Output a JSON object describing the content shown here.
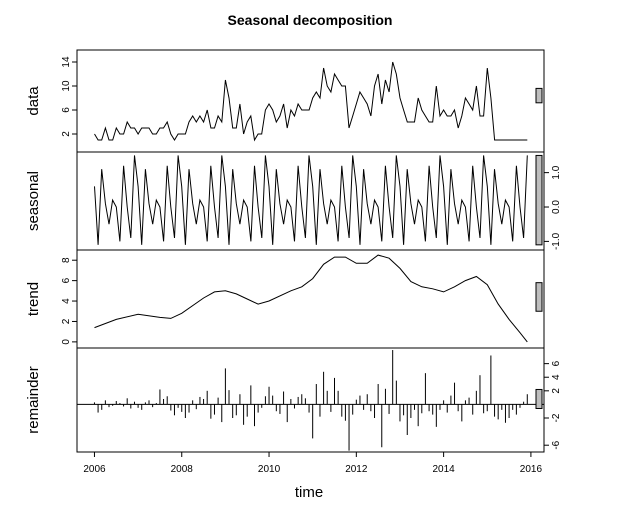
{
  "title": "Seasonal decomposition",
  "xlabel": "time",
  "chart_data": [
    {
      "type": "line",
      "name": "data",
      "ylabel": "data",
      "ylim": [
        -1,
        16
      ],
      "yticks": [
        2,
        6,
        10,
        14
      ],
      "ytick_side": "left",
      "x": [
        2006.0,
        2006.083,
        2006.167,
        2006.25,
        2006.333,
        2006.417,
        2006.5,
        2006.583,
        2006.667,
        2006.75,
        2006.833,
        2006.917,
        2007.0,
        2007.083,
        2007.167,
        2007.25,
        2007.333,
        2007.417,
        2007.5,
        2007.583,
        2007.667,
        2007.75,
        2007.833,
        2007.917,
        2008.0,
        2008.083,
        2008.167,
        2008.25,
        2008.333,
        2008.417,
        2008.5,
        2008.583,
        2008.667,
        2008.75,
        2008.833,
        2008.917,
        2009.0,
        2009.083,
        2009.167,
        2009.25,
        2009.333,
        2009.417,
        2009.5,
        2009.583,
        2009.667,
        2009.75,
        2009.833,
        2009.917,
        2010.0,
        2010.083,
        2010.167,
        2010.25,
        2010.333,
        2010.417,
        2010.5,
        2010.583,
        2010.667,
        2010.75,
        2010.833,
        2010.917,
        2011.0,
        2011.083,
        2011.167,
        2011.25,
        2011.333,
        2011.417,
        2011.5,
        2011.583,
        2011.667,
        2011.75,
        2011.833,
        2011.917,
        2012.0,
        2012.083,
        2012.167,
        2012.25,
        2012.333,
        2012.417,
        2012.5,
        2012.583,
        2012.667,
        2012.75,
        2012.833,
        2012.917,
        2013.0,
        2013.083,
        2013.167,
        2013.25,
        2013.333,
        2013.417,
        2013.5,
        2013.583,
        2013.667,
        2013.75,
        2013.833,
        2013.917,
        2014.0,
        2014.083,
        2014.167,
        2014.25,
        2014.333,
        2014.417,
        2014.5,
        2014.583,
        2014.667,
        2014.75,
        2014.833,
        2014.917,
        2015.0,
        2015.083,
        2015.167,
        2015.25,
        2015.333,
        2015.417,
        2015.5,
        2015.583,
        2015.667,
        2015.75,
        2015.833,
        2015.917
      ],
      "values": [
        2,
        1,
        1,
        3,
        1,
        1,
        3,
        2,
        2,
        4,
        3,
        3,
        2,
        3,
        3,
        3,
        2,
        2,
        3,
        3,
        4,
        2,
        1,
        2,
        2,
        2,
        4,
        5,
        4,
        5,
        4,
        6,
        3,
        3,
        5,
        4,
        11,
        8,
        3,
        3,
        7,
        2,
        4,
        5,
        1,
        2,
        2,
        6,
        7,
        6,
        4,
        5,
        7,
        3,
        6,
        5,
        7,
        6,
        6,
        6,
        8,
        9,
        8,
        13,
        10,
        9,
        12,
        11,
        10,
        10,
        3,
        5,
        7,
        9,
        8,
        7,
        5,
        10,
        12,
        7,
        11,
        9,
        14,
        12,
        8,
        6,
        4,
        4,
        4,
        8,
        6,
        5,
        4,
        4,
        10,
        5,
        6,
        5,
        5,
        6,
        3,
        5,
        8,
        7,
        6,
        10,
        5,
        5,
        13,
        8,
        1,
        1,
        1,
        1,
        1,
        1,
        1,
        1,
        1,
        1
      ],
      "bar_range": [
        7.2,
        9.6
      ]
    },
    {
      "type": "line",
      "name": "seasonal",
      "ylabel": "seasonal",
      "ylim": [
        -1.25,
        1.6
      ],
      "yticks": [
        -1.0,
        0.0,
        1.0
      ],
      "ytick_labels": [
        "-1.0",
        "0.0",
        "1.0"
      ],
      "ytick_side": "right",
      "x_start": 2006.0,
      "x_step": 0.0833333,
      "pattern": [
        0.6,
        -1.1,
        1.1,
        0.1,
        -0.5,
        0.2,
        0.0,
        -1.0,
        1.2,
        0.0,
        -0.9,
        1.5
      ],
      "bar_range": [
        -1.1,
        1.5
      ]
    },
    {
      "type": "line",
      "name": "trend",
      "ylabel": "trend",
      "ylim": [
        -0.6,
        9.0
      ],
      "yticks": [
        0,
        2,
        4,
        6,
        8
      ],
      "ytick_side": "left",
      "x": [
        2006.0,
        2006.5,
        2007.0,
        2007.5,
        2007.75,
        2008.0,
        2008.5,
        2008.75,
        2009.0,
        2009.25,
        2009.5,
        2009.75,
        2010.0,
        2010.5,
        2010.75,
        2011.0,
        2011.25,
        2011.5,
        2011.75,
        2012.0,
        2012.25,
        2012.5,
        2012.75,
        2013.0,
        2013.25,
        2013.5,
        2013.75,
        2014.0,
        2014.25,
        2014.5,
        2014.75,
        2015.0,
        2015.25,
        2015.5,
        2015.75,
        2015.917
      ],
      "values": [
        1.4,
        2.2,
        2.7,
        2.4,
        2.3,
        2.8,
        4.3,
        4.9,
        5.0,
        4.7,
        4.2,
        3.7,
        4.0,
        5.0,
        5.4,
        6.2,
        7.6,
        8.3,
        8.3,
        7.7,
        7.7,
        8.5,
        8.2,
        7.2,
        5.9,
        5.4,
        5.2,
        4.9,
        5.4,
        6.0,
        6.4,
        5.6,
        3.7,
        2.2,
        0.9,
        0.0
      ],
      "bar_range": [
        3.0,
        5.8
      ]
    },
    {
      "type": "bar",
      "name": "remainder",
      "ylabel": "remainder",
      "ylim": [
        -7.0,
        8.3
      ],
      "yticks": [
        -6,
        -2,
        2,
        4,
        6
      ],
      "ytick_side": "right",
      "baseline": 0,
      "x": [
        2006.0,
        2006.083,
        2006.167,
        2006.25,
        2006.333,
        2006.417,
        2006.5,
        2006.583,
        2006.667,
        2006.75,
        2006.833,
        2006.917,
        2007.0,
        2007.083,
        2007.167,
        2007.25,
        2007.333,
        2007.417,
        2007.5,
        2007.583,
        2007.667,
        2007.75,
        2007.833,
        2007.917,
        2008.0,
        2008.083,
        2008.167,
        2008.25,
        2008.333,
        2008.417,
        2008.5,
        2008.583,
        2008.667,
        2008.75,
        2008.833,
        2008.917,
        2009.0,
        2009.083,
        2009.167,
        2009.25,
        2009.333,
        2009.417,
        2009.5,
        2009.583,
        2009.667,
        2009.75,
        2009.833,
        2009.917,
        2010.0,
        2010.083,
        2010.167,
        2010.25,
        2010.333,
        2010.417,
        2010.5,
        2010.583,
        2010.667,
        2010.75,
        2010.833,
        2010.917,
        2011.0,
        2011.083,
        2011.167,
        2011.25,
        2011.333,
        2011.417,
        2011.5,
        2011.583,
        2011.667,
        2011.75,
        2011.833,
        2011.917,
        2012.0,
        2012.083,
        2012.167,
        2012.25,
        2012.333,
        2012.417,
        2012.5,
        2012.583,
        2012.667,
        2012.75,
        2012.833,
        2012.917,
        2013.0,
        2013.083,
        2013.167,
        2013.25,
        2013.333,
        2013.417,
        2013.5,
        2013.583,
        2013.667,
        2013.75,
        2013.833,
        2013.917,
        2014.0,
        2014.083,
        2014.167,
        2014.25,
        2014.333,
        2014.417,
        2014.5,
        2014.583,
        2014.667,
        2014.75,
        2014.833,
        2014.917,
        2015.0,
        2015.083,
        2015.167,
        2015.25,
        2015.333,
        2015.417,
        2015.5,
        2015.583,
        2015.667,
        2015.75,
        2015.833,
        2015.917
      ],
      "values": [
        0.3,
        -1.2,
        -0.8,
        0.6,
        -0.4,
        -0.2,
        0.5,
        0.2,
        -0.3,
        0.9,
        -0.6,
        0.4,
        -0.5,
        -0.8,
        0.3,
        0.6,
        -0.4,
        0.2,
        2.2,
        0.8,
        1.2,
        -0.9,
        -1.6,
        -0.5,
        -1.1,
        -2.0,
        -1.2,
        0.6,
        -0.7,
        1.1,
        0.8,
        2.0,
        -2.1,
        -1.5,
        1.0,
        -2.6,
        5.3,
        2.1,
        -2.0,
        -1.6,
        1.5,
        -3.0,
        -1.8,
        2.8,
        -3.2,
        -1.2,
        -0.5,
        1.2,
        2.6,
        1.3,
        -1.0,
        -1.4,
        1.9,
        -2.6,
        0.8,
        -0.6,
        1.1,
        1.5,
        0.9,
        -1.2,
        -5.0,
        3.0,
        -1.8,
        4.8,
        2.0,
        -1.1,
        3.9,
        2.0,
        -1.8,
        -2.4,
        -6.8,
        -1.5,
        0.7,
        1.3,
        -0.8,
        1.5,
        -1.0,
        -2.0,
        3.0,
        -6.3,
        2.3,
        -1.4,
        8.0,
        3.5,
        -2.5,
        -1.6,
        -4.5,
        -2.0,
        -0.8,
        -3.2,
        -1.3,
        4.6,
        -1.0,
        -1.5,
        -3.3,
        -0.8,
        0.6,
        -1.2,
        1.3,
        3.2,
        -1.0,
        -2.5,
        0.6,
        1.0,
        -1.5,
        2.0,
        4.3,
        -1.3,
        -1.0,
        7.2,
        -1.8,
        -2.2,
        -0.8,
        -2.7,
        -2.0,
        -0.8,
        -1.5,
        -0.5,
        0.4,
        1.5
      ],
      "bar_range": [
        -0.6,
        2.2
      ]
    }
  ],
  "x_axis": {
    "xlim": [
      2005.6,
      2016.3
    ],
    "ticks": [
      2006,
      2008,
      2010,
      2012,
      2014,
      2016
    ],
    "tick_labels": [
      "2006",
      "2008",
      "2010",
      "2012",
      "2014",
      "2016"
    ]
  }
}
